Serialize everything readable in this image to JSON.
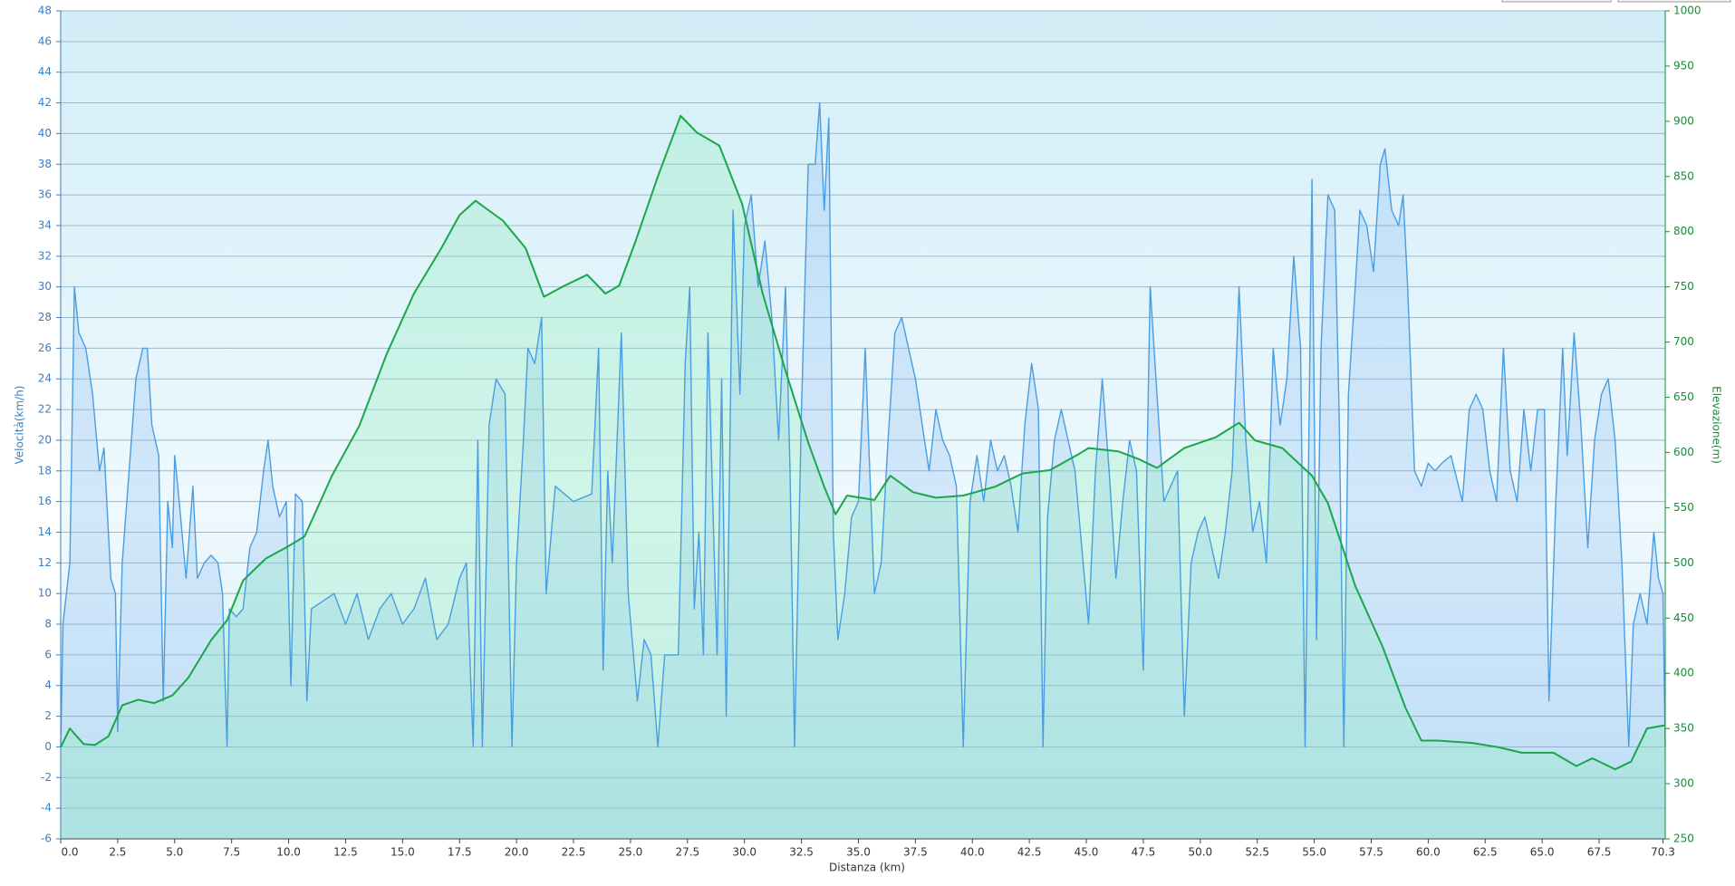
{
  "chart_data": {
    "type": "line",
    "xlabel": "Distanza  (km)",
    "ylabel": "Velocità(km/h)",
    "y2label": "Elevazione(m)",
    "xlim": [
      0,
      70.4
    ],
    "ylim": [
      -6,
      48
    ],
    "y2lim": [
      250,
      1000
    ],
    "grid": true,
    "xticks": [
      {
        "value": 0,
        "label": "0.0"
      },
      {
        "value": 2.5,
        "label": "2.5"
      },
      {
        "value": 5,
        "label": "5.0"
      },
      {
        "value": 7.5,
        "label": "7.5"
      },
      {
        "value": 10,
        "label": "10.0"
      },
      {
        "value": 12.5,
        "label": "12.5"
      },
      {
        "value": 15,
        "label": "15.0"
      },
      {
        "value": 17.5,
        "label": "17.5"
      },
      {
        "value": 20,
        "label": "20.0"
      },
      {
        "value": 22.5,
        "label": "22.5"
      },
      {
        "value": 25,
        "label": "25.0"
      },
      {
        "value": 27.5,
        "label": "27.5"
      },
      {
        "value": 30,
        "label": "30.0"
      },
      {
        "value": 32.5,
        "label": "32.5"
      },
      {
        "value": 35,
        "label": "35.0"
      },
      {
        "value": 37.5,
        "label": "37.5"
      },
      {
        "value": 40,
        "label": "40.0"
      },
      {
        "value": 42.5,
        "label": "42.5"
      },
      {
        "value": 45,
        "label": "45.0"
      },
      {
        "value": 47.5,
        "label": "47.5"
      },
      {
        "value": 50,
        "label": "50.0"
      },
      {
        "value": 52.5,
        "label": "52.5"
      },
      {
        "value": 55,
        "label": "55.0"
      },
      {
        "value": 57.5,
        "label": "57.5"
      },
      {
        "value": 60,
        "label": "60.0"
      },
      {
        "value": 62.5,
        "label": "62.5"
      },
      {
        "value": 65,
        "label": "65.0"
      },
      {
        "value": 67.5,
        "label": "67.5"
      },
      70.3
    ],
    "yticks": [
      -6,
      -4,
      -2,
      0,
      2,
      4,
      6,
      8,
      10,
      12,
      14,
      16,
      18,
      20,
      22,
      24,
      26,
      28,
      30,
      32,
      34,
      36,
      38,
      40,
      42,
      44,
      46,
      48
    ],
    "y2ticks": [
      250,
      300,
      350,
      400,
      450,
      500,
      550,
      600,
      650,
      700,
      750,
      800,
      850,
      900,
      950,
      1000
    ],
    "series": [
      {
        "color": "#4a9de0",
        "x": [
          0,
          0.1,
          0.4,
          0.6,
          0.8,
          1.1,
          1.4,
          1.7,
          1.9,
          2.2,
          2.4,
          2.5,
          2.7,
          3.0,
          3.3,
          3.6,
          3.8,
          4.0,
          4.3,
          4.5,
          4.7,
          4.9,
          5.0,
          5.2,
          5.5,
          5.8,
          6.0,
          6.3,
          6.6,
          6.9,
          7.1,
          7.3,
          7.4,
          7.7,
          8.0,
          8.3,
          8.6,
          8.9,
          9.1,
          9.3,
          9.6,
          9.9,
          10.1,
          10.3,
          10.6,
          10.8,
          11.0,
          11.5,
          12.0,
          12.5,
          13.0,
          13.5,
          14.0,
          14.5,
          15.0,
          15.5,
          16.0,
          16.5,
          17.0,
          17.5,
          17.8,
          18.1,
          18.3,
          18.5,
          18.8,
          19.1,
          19.5,
          19.8,
          20.0,
          20.3,
          20.5,
          20.8,
          21.1,
          21.3,
          21.7,
          22.5,
          23.3,
          23.6,
          23.8,
          24.0,
          24.2,
          24.6,
          24.9,
          25.3,
          25.6,
          25.9,
          26.2,
          26.5,
          26.8,
          27.1,
          27.4,
          27.6,
          27.8,
          28.0,
          28.2,
          28.4,
          28.8,
          29.0,
          29.2,
          29.5,
          29.8,
          30.0,
          30.3,
          30.6,
          30.9,
          31.2,
          31.5,
          31.8,
          32.0,
          32.2,
          32.5,
          32.8,
          33.1,
          33.3,
          33.5,
          33.7,
          33.9,
          34.1,
          34.4,
          34.7,
          35.0,
          35.3,
          35.5,
          35.7,
          36.0,
          36.3,
          36.6,
          36.9,
          37.2,
          37.5,
          37.8,
          38.1,
          38.4,
          38.7,
          39.0,
          39.3,
          39.6,
          39.9,
          40.2,
          40.5,
          40.8,
          41.1,
          41.4,
          41.7,
          42.0,
          42.3,
          42.6,
          42.9,
          43.1,
          43.3,
          43.6,
          43.9,
          44.2,
          44.5,
          44.8,
          45.1,
          45.4,
          45.7,
          46.0,
          46.3,
          46.6,
          46.9,
          47.2,
          47.5,
          47.8,
          48.1,
          48.4,
          48.7,
          49.0,
          49.3,
          49.6,
          49.9,
          50.2,
          50.5,
          50.8,
          51.1,
          51.4,
          51.7,
          52.0,
          52.3,
          52.6,
          52.9,
          53.2,
          53.5,
          53.8,
          54.1,
          54.4,
          54.6,
          54.9,
          55.1,
          55.3,
          55.6,
          55.9,
          56.1,
          56.3,
          56.5,
          56.8,
          57.0,
          57.3,
          57.6,
          57.9,
          58.1,
          58.4,
          58.7,
          58.9,
          59.1,
          59.4,
          59.7,
          60.0,
          60.3,
          60.6,
          61.0,
          61.5,
          61.8,
          62.1,
          62.4,
          62.7,
          63.0,
          63.3,
          63.6,
          63.9,
          64.2,
          64.5,
          64.8,
          65.1,
          65.3,
          65.6,
          65.9,
          66.1,
          66.4,
          66.7,
          67.0,
          67.3,
          67.6,
          67.9,
          68.2,
          68.5,
          68.8,
          69.0,
          69.3,
          69.6,
          69.9,
          70.1,
          70.3,
          70.4
        ],
        "values": [
          0,
          8,
          12,
          30,
          27,
          26,
          23,
          18,
          19.5,
          11,
          10,
          1,
          12,
          18,
          24,
          26,
          26,
          21,
          19,
          3,
          16,
          13,
          19,
          16,
          11,
          17,
          11,
          12,
          12.5,
          12,
          10,
          0,
          9,
          8.5,
          9,
          13,
          14,
          18,
          20,
          17,
          15,
          16,
          4,
          16.5,
          16,
          3,
          9,
          9.5,
          10,
          8,
          10,
          7,
          9,
          10,
          8,
          9,
          11,
          7,
          8,
          11,
          12,
          0,
          20,
          0,
          21,
          24,
          23,
          0,
          12,
          20,
          26,
          25,
          28,
          10,
          17,
          16,
          16.5,
          26,
          5,
          18,
          12,
          27,
          10,
          3,
          7,
          6,
          0,
          6,
          6,
          6,
          25,
          30,
          9,
          14,
          6,
          27,
          6,
          24,
          2,
          35,
          23,
          34,
          36,
          30,
          33,
          28,
          20,
          30,
          18,
          0,
          22,
          38,
          38,
          42,
          35,
          41,
          14,
          7,
          10,
          15,
          16,
          26,
          18,
          10,
          12,
          20,
          27,
          28,
          26,
          24,
          21,
          18,
          22,
          20,
          19,
          17,
          0,
          16,
          19,
          16,
          20,
          18,
          19,
          17,
          14,
          21,
          25,
          22,
          0,
          15,
          20,
          22,
          20,
          18,
          13,
          8,
          18,
          24,
          18,
          11,
          16,
          20,
          18,
          5,
          30,
          23,
          16,
          17,
          18,
          2,
          12,
          14,
          15,
          13,
          11,
          14,
          18,
          30,
          20,
          14,
          16,
          12,
          26,
          21,
          24,
          32,
          26,
          0,
          37,
          7,
          26,
          36,
          35,
          21,
          0,
          23,
          30,
          35,
          34,
          31,
          38,
          39,
          35,
          34,
          36,
          30,
          18,
          17,
          18.5,
          18,
          18.5,
          19,
          16,
          22,
          23,
          22,
          18,
          16,
          26,
          18,
          16,
          22,
          18,
          22,
          22,
          3,
          16,
          26,
          19,
          27,
          21,
          13,
          20,
          23,
          24,
          20,
          12,
          0,
          8,
          10,
          8,
          14,
          11,
          10,
          0
        ]
      },
      {
        "color": "#1aa64a",
        "axis": "y2",
        "x": [
          0,
          0.4,
          1.0,
          1.5,
          2.1,
          2.7,
          3.4,
          4.1,
          4.9,
          5.6,
          6.6,
          7.3,
          8.0,
          9.0,
          9.9,
          10.7,
          11.9,
          13.1,
          14.3,
          15.5,
          16.7,
          17.5,
          18.2,
          19.4,
          20.4,
          21.2,
          22.1,
          23.1,
          23.9,
          24.5,
          25.2,
          26.2,
          27.2,
          27.9,
          28.9,
          29.9,
          30.8,
          31.8,
          32.8,
          33.5,
          34.0,
          34.5,
          35.7,
          36.4,
          37.4,
          38.4,
          39.6,
          41.0,
          42.2,
          43.4,
          44.7,
          45.1,
          46.4,
          47.3,
          48.1,
          49.3,
          50.7,
          51.7,
          52.4,
          53.6,
          54.9,
          55.6,
          56.8,
          58.0,
          59.0,
          59.7,
          60.4,
          61.9,
          63.1,
          64.1,
          65.5,
          66.5,
          67.2,
          68.2,
          68.9,
          69.6,
          70.4
        ],
        "values": [
          333,
          350,
          336,
          335,
          343,
          371,
          376,
          373,
          380,
          396,
          430,
          448,
          484,
          504,
          514,
          524,
          579,
          624,
          689,
          744,
          785,
          815,
          828,
          810,
          785,
          741,
          751,
          761,
          744,
          751,
          790,
          850,
          905,
          890,
          878,
          825,
          744,
          674,
          609,
          569,
          544,
          561,
          557,
          579,
          564,
          559,
          561,
          569,
          581,
          584,
          599,
          604,
          601,
          594,
          586,
          604,
          614,
          627,
          611,
          604,
          579,
          554,
          479,
          424,
          369,
          339,
          339,
          337,
          333,
          328,
          328,
          316,
          323,
          313,
          320,
          350,
          353
        ]
      }
    ]
  }
}
